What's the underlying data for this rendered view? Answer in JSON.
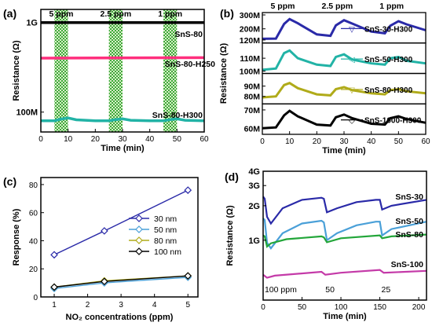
{
  "chart_data": [
    {
      "panel": "(a)",
      "type": "line",
      "xlabel": "Time (min)",
      "ylabel": "Resistance (Ω)",
      "xlim": [
        0,
        60
      ],
      "ylim_log": [
        60000000,
        1400000000
      ],
      "xticks": [
        0,
        10,
        20,
        30,
        40,
        50,
        60
      ],
      "yticks": [
        {
          "v": 100000000,
          "label": "100M"
        },
        {
          "v": 1000000000,
          "label": "1G"
        }
      ],
      "exposure_windows": [
        {
          "label": "5 ppm",
          "x0": 5,
          "x1": 10
        },
        {
          "label": "2.5 ppm",
          "x0": 25,
          "x1": 30
        },
        {
          "label": "1 ppm",
          "x0": 45,
          "x1": 50
        }
      ],
      "series": [
        {
          "name": "SnS-80",
          "color": "#000000",
          "points": [
            [
              0,
              1000000000
            ],
            [
              60,
              1000000000
            ]
          ]
        },
        {
          "name": "SnS-80-H250",
          "color": "#ff2f7d",
          "points": [
            [
              0,
              400000000
            ],
            [
              60,
              405000000
            ]
          ]
        },
        {
          "name": "SnS-80-H300",
          "color": "#22b3a6",
          "points": [
            [
              0,
              80000000
            ],
            [
              5,
              80000000
            ],
            [
              7,
              83000000
            ],
            [
              10,
              86000000
            ],
            [
              13,
              82000000
            ],
            [
              20,
              80000000
            ],
            [
              25,
              80000000
            ],
            [
              27,
              82000000
            ],
            [
              30,
              84000000
            ],
            [
              33,
              81000000
            ],
            [
              40,
              80000000
            ],
            [
              45,
              80000000
            ],
            [
              47,
              82000000
            ],
            [
              50,
              84000000
            ],
            [
              53,
              81000000
            ],
            [
              60,
              80000000
            ]
          ]
        }
      ]
    },
    {
      "panel": "(b)",
      "type": "line",
      "xlabel": "Time (min)",
      "ylabel": "Resistance (Ω)",
      "xlim": [
        0,
        60
      ],
      "xticks": [
        0,
        10,
        20,
        30,
        40,
        50,
        60
      ],
      "top_labels": [
        {
          "label": "5 ppm",
          "x": 7.5
        },
        {
          "label": "2.5 ppm",
          "x": 27.5
        },
        {
          "label": "1 ppm",
          "x": 47.5
        }
      ],
      "subplots": [
        {
          "name": "SnS-30-H300",
          "color": "#2a2aa8",
          "marker": "▽",
          "ylim": [
            115000000,
            300000000
          ],
          "yticks": [
            {
              "v": 120000000,
              "label": "120M"
            },
            {
              "v": 200000000,
              "label": "200M"
            },
            {
              "v": 300000000,
              "label": "300M"
            }
          ],
          "points": [
            [
              0,
              128000000
            ],
            [
              5,
              130000000
            ],
            [
              8,
              235000000
            ],
            [
              10,
              270000000
            ],
            [
              13,
              240000000
            ],
            [
              20,
              160000000
            ],
            [
              25,
              150000000
            ],
            [
              27,
              225000000
            ],
            [
              30,
              262000000
            ],
            [
              33,
              238000000
            ],
            [
              40,
              180000000
            ],
            [
              45,
              168000000
            ],
            [
              47,
              222000000
            ],
            [
              50,
              255000000
            ],
            [
              53,
              232000000
            ],
            [
              60,
              190000000
            ]
          ]
        },
        {
          "name": "SnS-50-H300",
          "color": "#22b3a6",
          "marker": "◁",
          "ylim": [
            100000000,
            120000000
          ],
          "yticks": [
            {
              "v": 100000000,
              "label": "100M"
            },
            {
              "v": 110000000,
              "label": "110M"
            }
          ],
          "points": [
            [
              0,
              101000000
            ],
            [
              5,
              102000000
            ],
            [
              8,
              114000000
            ],
            [
              10,
              116000000
            ],
            [
              13,
              110000000
            ],
            [
              20,
              105000000
            ],
            [
              25,
              104000000
            ],
            [
              27,
              111000000
            ],
            [
              30,
              113000000
            ],
            [
              33,
              109000000
            ],
            [
              40,
              106000000
            ],
            [
              45,
              105000000
            ],
            [
              47,
              110000000
            ],
            [
              50,
              111000000
            ],
            [
              53,
              108000000
            ],
            [
              60,
              106000000
            ]
          ]
        },
        {
          "name": "SnS-80-H300",
          "color": "#b0ab1a",
          "marker": "▽",
          "ylim": [
            75000000,
            100000000
          ],
          "yticks": [
            {
              "v": 80000000,
              "label": "80M"
            },
            {
              "v": 90000000,
              "label": "90M"
            }
          ],
          "points": [
            [
              0,
              79000000
            ],
            [
              5,
              80000000
            ],
            [
              8,
              91000000
            ],
            [
              10,
              93000000
            ],
            [
              13,
              88000000
            ],
            [
              20,
              82000000
            ],
            [
              25,
              81000000
            ],
            [
              27,
              87000000
            ],
            [
              30,
              89000000
            ],
            [
              33,
              86000000
            ],
            [
              40,
              83000000
            ],
            [
              45,
              82000000
            ],
            [
              47,
              86000000
            ],
            [
              50,
              87000000
            ],
            [
              53,
              85000000
            ],
            [
              60,
              83000000
            ]
          ]
        },
        {
          "name": "SnS-1000-H300",
          "color": "#000000",
          "marker": "◇",
          "ylim": [
            58000000,
            72000000
          ],
          "yticks": [
            {
              "v": 60000000,
              "label": "60M"
            },
            {
              "v": 70000000,
              "label": "70M"
            }
          ],
          "points": [
            [
              0,
              60000000
            ],
            [
              5,
              60500000
            ],
            [
              8,
              67000000
            ],
            [
              10,
              69500000
            ],
            [
              13,
              66500000
            ],
            [
              20,
              62000000
            ],
            [
              25,
              61500000
            ],
            [
              27,
              66000000
            ],
            [
              30,
              67500000
            ],
            [
              33,
              65500000
            ],
            [
              40,
              62500000
            ],
            [
              45,
              62000000
            ],
            [
              47,
              65500000
            ],
            [
              50,
              66500000
            ],
            [
              53,
              65000000
            ],
            [
              60,
              63000000
            ]
          ]
        }
      ]
    },
    {
      "panel": "(c)",
      "type": "line",
      "xlabel": "NO₂ concentrations (ppm)",
      "ylabel": "Response (%)",
      "xlim": [
        0.6,
        5.3
      ],
      "ylim": [
        0,
        85
      ],
      "xticks": [
        1,
        2,
        3,
        4,
        5
      ],
      "yticks": [
        0,
        20,
        40,
        60,
        80
      ],
      "legend_position": "right",
      "x": [
        1,
        2.5,
        5
      ],
      "series": [
        {
          "name": "30 nm",
          "color": "#2a2aa8",
          "values": [
            30,
            47,
            76
          ]
        },
        {
          "name": "50 nm",
          "color": "#4aa0d8",
          "values": [
            6,
            10,
            14
          ]
        },
        {
          "name": "80 nm",
          "color": "#b0ab1a",
          "values": [
            7,
            11.5,
            15
          ]
        },
        {
          "name": "100 nm",
          "color": "#000000",
          "values": [
            7,
            11,
            15
          ]
        }
      ]
    },
    {
      "panel": "(d)",
      "type": "line",
      "xlabel": "Time (min)",
      "ylabel": "Resistance (Ω)",
      "xlim": [
        0,
        210
      ],
      "ylim_log": [
        300000000,
        4000000000
      ],
      "xticks": [
        0,
        50,
        100,
        150,
        200
      ],
      "yticks": [
        {
          "v": 1000000000,
          "label": "1G"
        },
        {
          "v": 2000000000,
          "label": "2G"
        },
        {
          "v": 3000000000,
          "label": "3G"
        },
        {
          "v": 4000000000,
          "label": "4G"
        }
      ],
      "annotations": [
        {
          "label": "100 ppm",
          "x": 2
        },
        {
          "label": "50",
          "x": 80
        },
        {
          "label": "25",
          "x": 152
        }
      ],
      "series": [
        {
          "name": "SnS-30",
          "color": "#2a2aa8",
          "points": [
            [
              0,
              2400000000
            ],
            [
              2,
              2300000000
            ],
            [
              5,
              1600000000
            ],
            [
              10,
              1400000000
            ],
            [
              25,
              1900000000
            ],
            [
              50,
              2250000000
            ],
            [
              75,
              2350000000
            ],
            [
              78,
              2300000000
            ],
            [
              82,
              1750000000
            ],
            [
              95,
              1900000000
            ],
            [
              120,
              2150000000
            ],
            [
              145,
              2250000000
            ],
            [
              150,
              2250000000
            ],
            [
              153,
              1850000000
            ],
            [
              165,
              2000000000
            ],
            [
              210,
              2250000000
            ]
          ]
        },
        {
          "name": "SnS-50",
          "color": "#4aa0d8",
          "points": [
            [
              0,
              1550000000
            ],
            [
              2,
              1500000000
            ],
            [
              5,
              950000000
            ],
            [
              10,
              850000000
            ],
            [
              25,
              1150000000
            ],
            [
              50,
              1400000000
            ],
            [
              75,
              1480000000
            ],
            [
              78,
              1430000000
            ],
            [
              82,
              1000000000
            ],
            [
              95,
              1150000000
            ],
            [
              120,
              1350000000
            ],
            [
              145,
              1450000000
            ],
            [
              150,
              1450000000
            ],
            [
              153,
              1100000000
            ],
            [
              165,
              1250000000
            ],
            [
              210,
              1450000000
            ]
          ]
        },
        {
          "name": "SnS-80",
          "color": "#23a63a",
          "points": [
            [
              0,
              1100000000
            ],
            [
              2,
              1080000000
            ],
            [
              5,
              880000000
            ],
            [
              10,
              940000000
            ],
            [
              30,
              1020000000
            ],
            [
              75,
              1080000000
            ],
            [
              78,
              1060000000
            ],
            [
              82,
              960000000
            ],
            [
              100,
              1040000000
            ],
            [
              150,
              1100000000
            ],
            [
              153,
              1040000000
            ],
            [
              165,
              1080000000
            ],
            [
              210,
              1120000000
            ]
          ]
        },
        {
          "name": "SnS-100",
          "color": "#c43aa8",
          "points": [
            [
              0,
              500000000
            ],
            [
              5,
              470000000
            ],
            [
              15,
              490000000
            ],
            [
              75,
              530000000
            ],
            [
              80,
              500000000
            ],
            [
              100,
              520000000
            ],
            [
              150,
              550000000
            ],
            [
              155,
              520000000
            ],
            [
              210,
              540000000
            ]
          ]
        }
      ]
    }
  ]
}
